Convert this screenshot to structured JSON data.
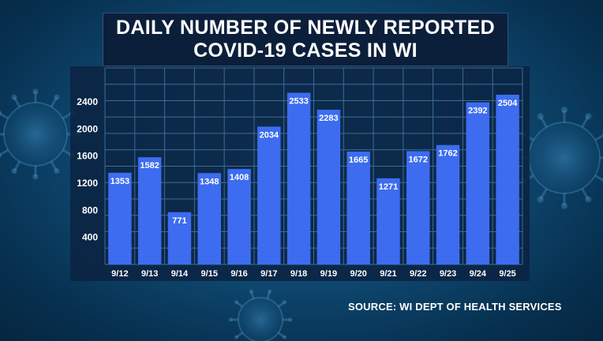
{
  "title_lines": [
    "DAILY NUMBER OF NEWLY REPORTED",
    "COVID-19 CASES IN WI"
  ],
  "source": "SOURCE: WI DEPT OF HEALTH SERVICES",
  "colors": {
    "bar": "#3d6cf0",
    "plot_background": "#0b2342",
    "grid": "#3d6c98",
    "axis_text": "#ffffff",
    "value_text": "#ffffff"
  },
  "chart_data": {
    "type": "bar",
    "title": "DAILY NUMBER OF NEWLY REPORTED COVID-19 CASES IN WI",
    "xlabel": "",
    "ylabel": "",
    "categories": [
      "9/12",
      "9/13",
      "9/14",
      "9/15",
      "9/16",
      "9/17",
      "9/18",
      "9/19",
      "9/20",
      "9/21",
      "9/22",
      "9/23",
      "9/24",
      "9/25"
    ],
    "values": [
      1353,
      1582,
      771,
      1348,
      1408,
      2034,
      2533,
      2283,
      1665,
      1271,
      1672,
      1762,
      2392,
      2504
    ],
    "yticks": [
      400,
      800,
      1200,
      1600,
      2000,
      2400
    ],
    "ylim": [
      0,
      2900
    ],
    "grid": true,
    "data_labels": true,
    "legend": "none"
  }
}
